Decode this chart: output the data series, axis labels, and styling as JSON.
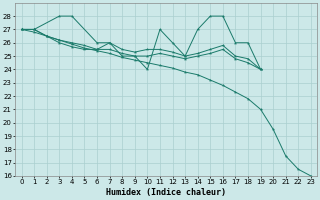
{
  "xlabel": "Humidex (Indice chaleur)",
  "bg_color": "#cce8e8",
  "grid_color": "#aacfcf",
  "line_color": "#1a7a6a",
  "xlim_min": -0.5,
  "xlim_max": 23.5,
  "ylim_min": 16,
  "ylim_max": 29,
  "s1_x": [
    0,
    1,
    3,
    4,
    6,
    7,
    8,
    9,
    10,
    11,
    12,
    13,
    14,
    15,
    16,
    17,
    18,
    19
  ],
  "s1_y": [
    27,
    27,
    28,
    28,
    26,
    26,
    25,
    25,
    24,
    27,
    26,
    25,
    27,
    28,
    28,
    26,
    26,
    24
  ],
  "s2_x": [
    0,
    1,
    2,
    3,
    4,
    5,
    6,
    7,
    8,
    9,
    10,
    11,
    12,
    13,
    14,
    15,
    16,
    17,
    18,
    19
  ],
  "s2_y": [
    27,
    27,
    26.5,
    26.2,
    26.0,
    25.8,
    25.5,
    26.0,
    25.5,
    25.3,
    25.5,
    25.5,
    25.3,
    25.0,
    25.2,
    25.5,
    25.8,
    25.0,
    24.8,
    24.0
  ],
  "s3_x": [
    0,
    1,
    2,
    3,
    4,
    5,
    6,
    7,
    8,
    9,
    10,
    11,
    12,
    13,
    14,
    15,
    16,
    17,
    18,
    19
  ],
  "s3_y": [
    27,
    27,
    26.5,
    26.0,
    25.7,
    25.5,
    25.5,
    25.5,
    25.2,
    25.0,
    25.0,
    25.2,
    25.0,
    24.8,
    25.0,
    25.2,
    25.5,
    24.8,
    24.5,
    24.0
  ],
  "s4_x": [
    0,
    1,
    2,
    3,
    4,
    5,
    6,
    7,
    8,
    9,
    10,
    11,
    12,
    13,
    14,
    15,
    16,
    17,
    18,
    19,
    20,
    21,
    22,
    23
  ],
  "s4_y": [
    27,
    26.8,
    26.5,
    26.2,
    25.9,
    25.6,
    25.4,
    25.2,
    24.9,
    24.7,
    24.5,
    24.3,
    24.1,
    23.8,
    23.6,
    23.2,
    22.8,
    22.3,
    21.8,
    21.0,
    19.5,
    17.5,
    16.5,
    16
  ]
}
